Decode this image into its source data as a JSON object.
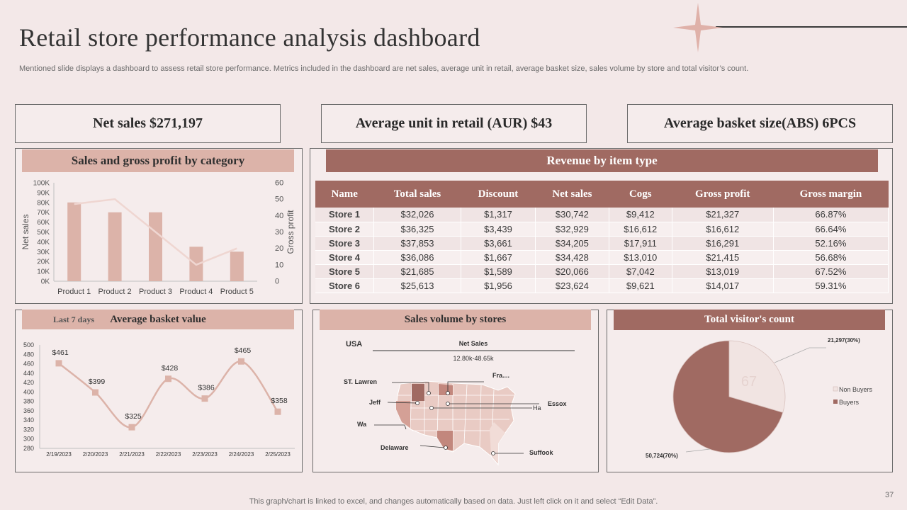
{
  "page": {
    "title": "Retail store performance analysis dashboard",
    "subtitle": "Mentioned slide displays a dashboard to assess retail store performance. Metrics included in the dashboard are net sales, average unit in retail, average basket size, sales volume by store and total visitor’s count.",
    "footer": "This graph/chart is linked to excel,  and changes automatically based on data. Just left click on it and select “Edit Data”.",
    "page_number": "37"
  },
  "kpis": {
    "net_sales": "Net sales $271,197",
    "aur": "Average unit in retail (AUR) $43",
    "abs": "Average basket size(ABS) 6PCS"
  },
  "panels": {
    "sales_gross": "Sales and gross profit by category",
    "revenue": "Revenue by item type",
    "basket": "Average basket value",
    "basket_tag": "Last 7 days",
    "volume": "Sales volume by stores",
    "visitors": "Total visitor's count"
  },
  "revenue_table": {
    "headers": [
      "Name",
      "Total sales",
      "Discount",
      "Net sales",
      "Cogs",
      "Gross  profit",
      "Gross margin"
    ],
    "rows": [
      [
        "Store 1",
        "$32,026",
        "$1,317",
        "$30,742",
        "$9,412",
        "$21,327",
        "66.87%"
      ],
      [
        "Store 2",
        "$36,325",
        "$3,439",
        "$32,929",
        "$16,612",
        "$16,612",
        "66.64%"
      ],
      [
        "Store 3",
        "$37,853",
        "$3,661",
        "$34,205",
        "$17,911",
        "$16,291",
        "52.16%"
      ],
      [
        "Store 4",
        "$36,086",
        "$1,667",
        "$34,428",
        "$13,010",
        "$21,415",
        "56.68%"
      ],
      [
        "Store 5",
        "$21,685",
        "$1,589",
        "$20,066",
        "$7,042",
        "$13,019",
        "67.52%"
      ],
      [
        "Store 6",
        "$25,613",
        "$1,956",
        "$23,624",
        "$9,621",
        "$14,017",
        "59.31%"
      ]
    ]
  },
  "map": {
    "country": "USA",
    "legend_title": "Net Sales",
    "legend_range": "12.80k-48.65k",
    "labels": [
      "Fra....",
      "ST. Lawren",
      "Jeff",
      "Essox",
      "Ha",
      "Wa",
      "Delaware",
      "Suffook"
    ]
  },
  "colors": {
    "background": "#f3e8e8",
    "accent_light": "#dcb3a9",
    "accent_dark": "#a06a62",
    "bar": "#dcb3a9",
    "line": "#efd6d1",
    "pie_buyers": "#a06a62",
    "pie_nonbuyers": "#f1e4e2"
  },
  "chart_data": [
    {
      "type": "bar",
      "title": "Sales and gross profit by category",
      "categories": [
        "Product 1",
        "Product 2",
        "Product 3",
        "Product 4",
        "Product 5"
      ],
      "series": [
        {
          "name": "Net sales",
          "kind": "bar",
          "axis": "left",
          "values": [
            80000,
            70000,
            70000,
            35000,
            30000
          ]
        },
        {
          "name": "Gross profit",
          "kind": "line",
          "axis": "right",
          "values": [
            47,
            50,
            30,
            10,
            20
          ]
        }
      ],
      "ylabel": "Net sales",
      "y2label": "Gross profit",
      "ylim": [
        0,
        100000
      ],
      "y2lim": [
        0,
        60
      ],
      "yticks": [
        "0K",
        "10K",
        "20K",
        "30K",
        "40K",
        "50K",
        "60K",
        "70K",
        "80K",
        "90K",
        "100K"
      ],
      "y2ticks": [
        "0",
        "10",
        "20",
        "30",
        "40",
        "50",
        "60"
      ]
    },
    {
      "type": "line",
      "title": "Average basket value",
      "x": [
        "2/19/2023",
        "2/20/2023",
        "2/21/2023",
        "2/22/2023",
        "2/23/2023",
        "2/24/2023",
        "2/25/2023"
      ],
      "values": [
        461,
        399,
        325,
        428,
        386,
        465,
        358
      ],
      "labels": [
        "$461",
        "$399",
        "$325",
        "$428",
        "$386",
        "$465",
        "$358"
      ],
      "ylim": [
        280,
        500
      ],
      "yticks": [
        "280",
        "300",
        "320",
        "340",
        "360",
        "380",
        "400",
        "420",
        "440",
        "460",
        "480",
        "500"
      ]
    },
    {
      "type": "pie",
      "title": "Total visitor's count",
      "slices": [
        {
          "name": "Non Buyers",
          "value": 21297,
          "label": "21,297(30%)"
        },
        {
          "name": "Buyers",
          "value": 50724,
          "label": "50,724(70%)"
        }
      ],
      "watermark": "67"
    }
  ]
}
